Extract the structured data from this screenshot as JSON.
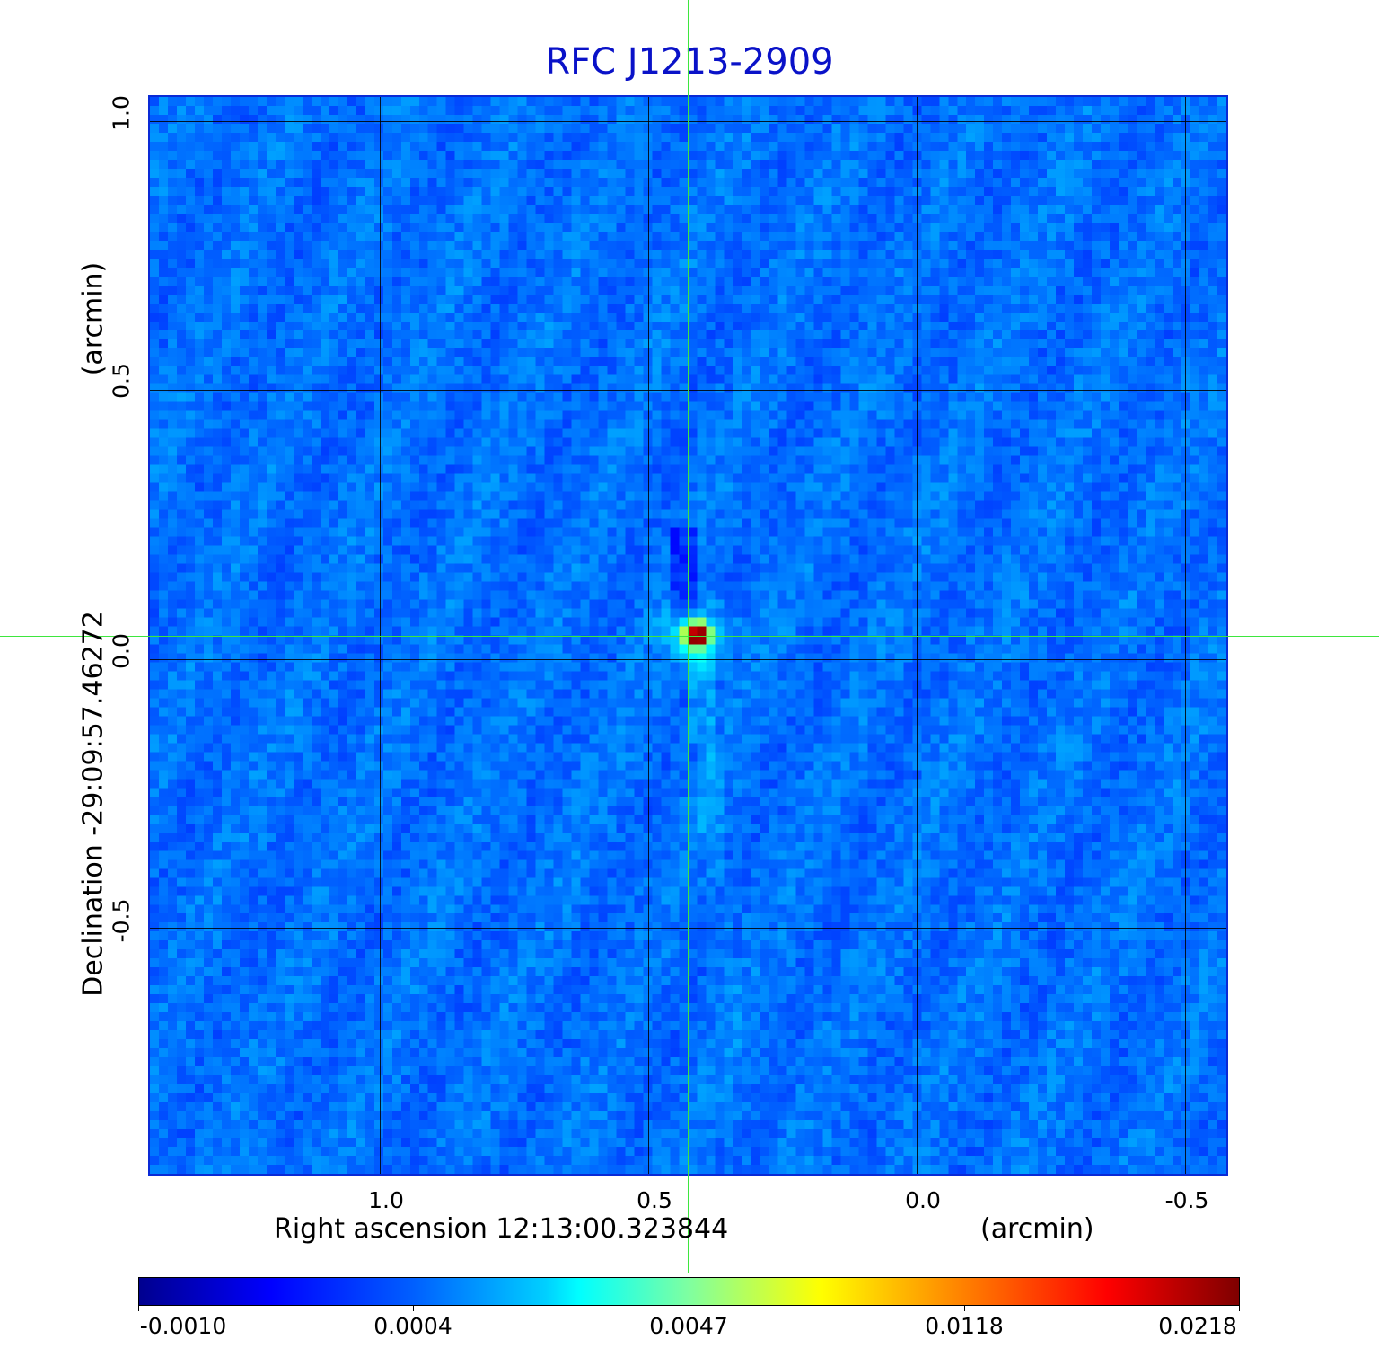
{
  "title": "RFC J1213-2909",
  "x_axis": {
    "label": "Right ascension  12:13:00.323844",
    "unit": "(arcmin)",
    "ticks": [
      "1.0",
      "0.5",
      "0.0",
      "-0.5"
    ]
  },
  "y_axis": {
    "label": "Declination  -29:09:57.46272",
    "unit": "(arcmin)",
    "ticks": [
      "1.0",
      "0.5",
      "0.0",
      "-0.5"
    ]
  },
  "colorbar": {
    "colormap": "jet",
    "ticks": [
      "-0.0010",
      "0.0004",
      "0.0047",
      "0.0118",
      "0.0218"
    ]
  },
  "colors": {
    "title": "#0a12c8",
    "frame": "#0a2ad6",
    "crosshair": "#3ee63e",
    "background_field": "#1e78f0",
    "source_peak": "#c80000"
  }
}
